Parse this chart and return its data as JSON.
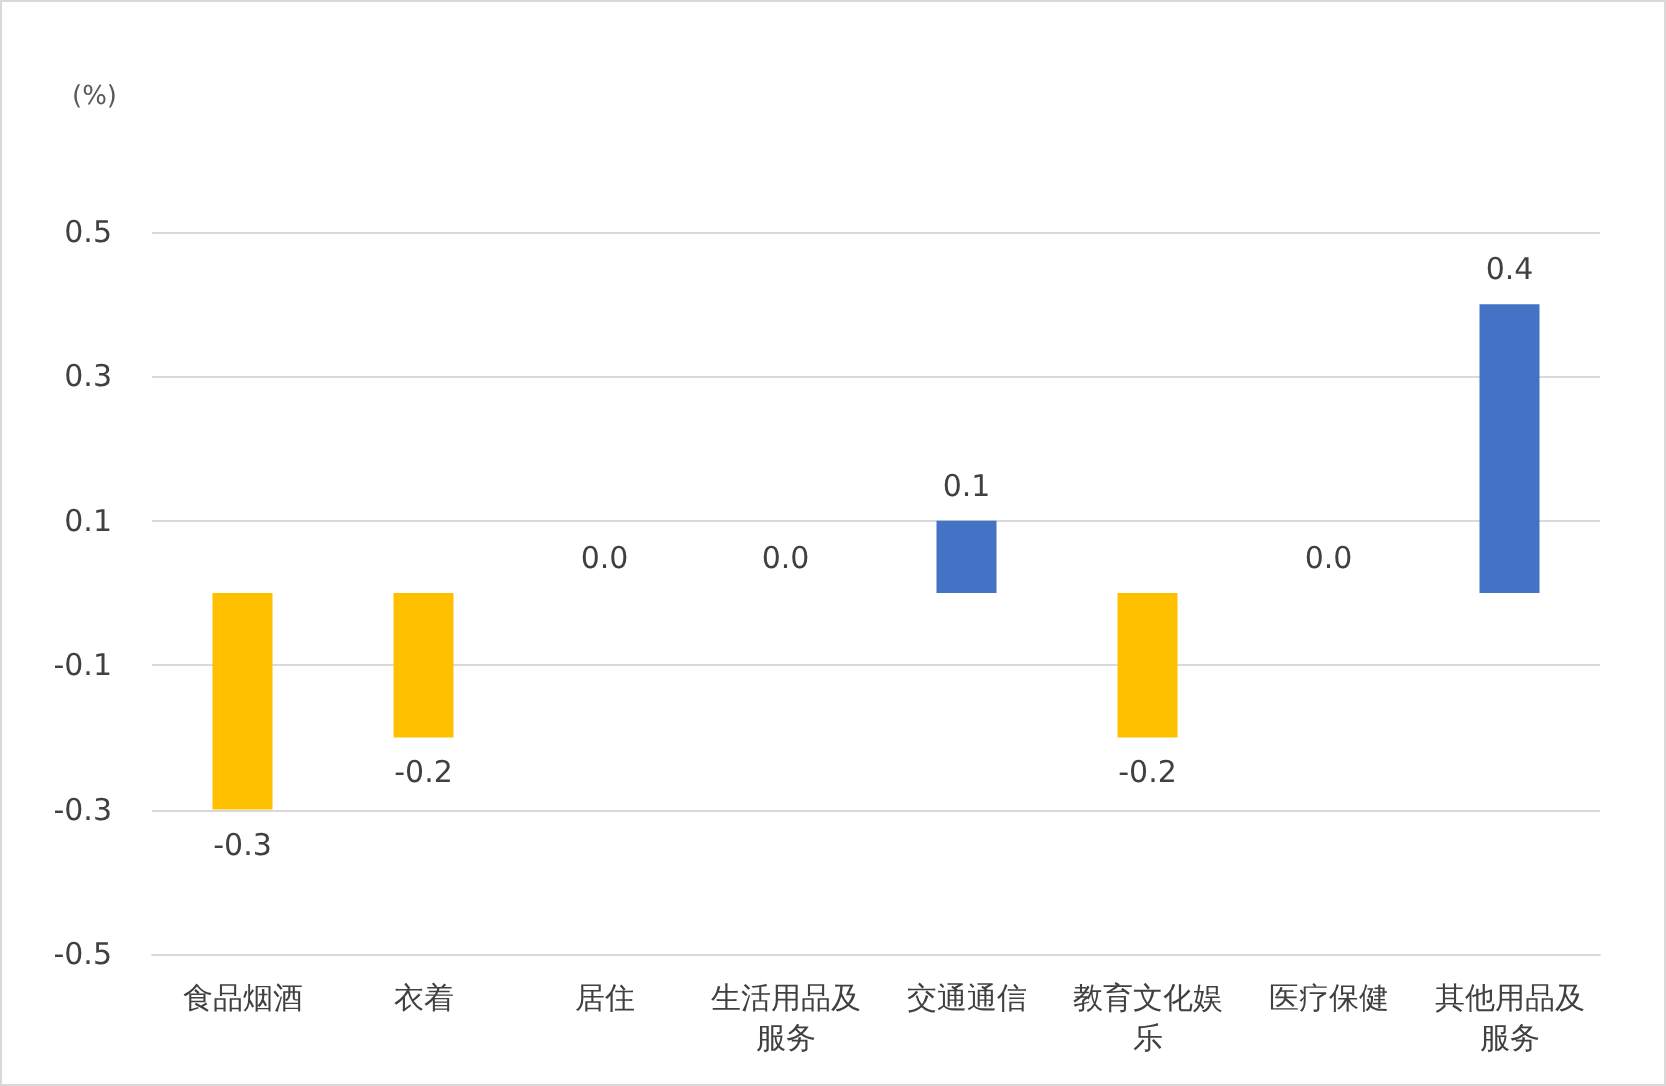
{
  "chart_data": {
    "type": "bar",
    "ylabel": "(%)",
    "categories": [
      "食品烟酒",
      "衣着",
      "居住",
      "生活用品及服务",
      "交通通信",
      "教育文化娱乐",
      "医疗保健",
      "其他用品及服务"
    ],
    "values": [
      -0.3,
      -0.2,
      0.0,
      0.0,
      0.1,
      -0.2,
      0.0,
      0.4
    ],
    "colors": [
      "#ffc000",
      "#ffc000",
      "#ffc000",
      "#ffc000",
      "#4472c4",
      "#ffc000",
      "#ffc000",
      "#4472c4"
    ],
    "value_labels": [
      "-0.3",
      "-0.2",
      "0.0",
      "0.0",
      "0.1",
      "-0.2",
      "0.0",
      "0.4"
    ],
    "ylim": [
      -0.5,
      0.5
    ],
    "yticks": [
      -0.5,
      -0.3,
      -0.1,
      0.1,
      0.3,
      0.5
    ],
    "grid": "y"
  }
}
